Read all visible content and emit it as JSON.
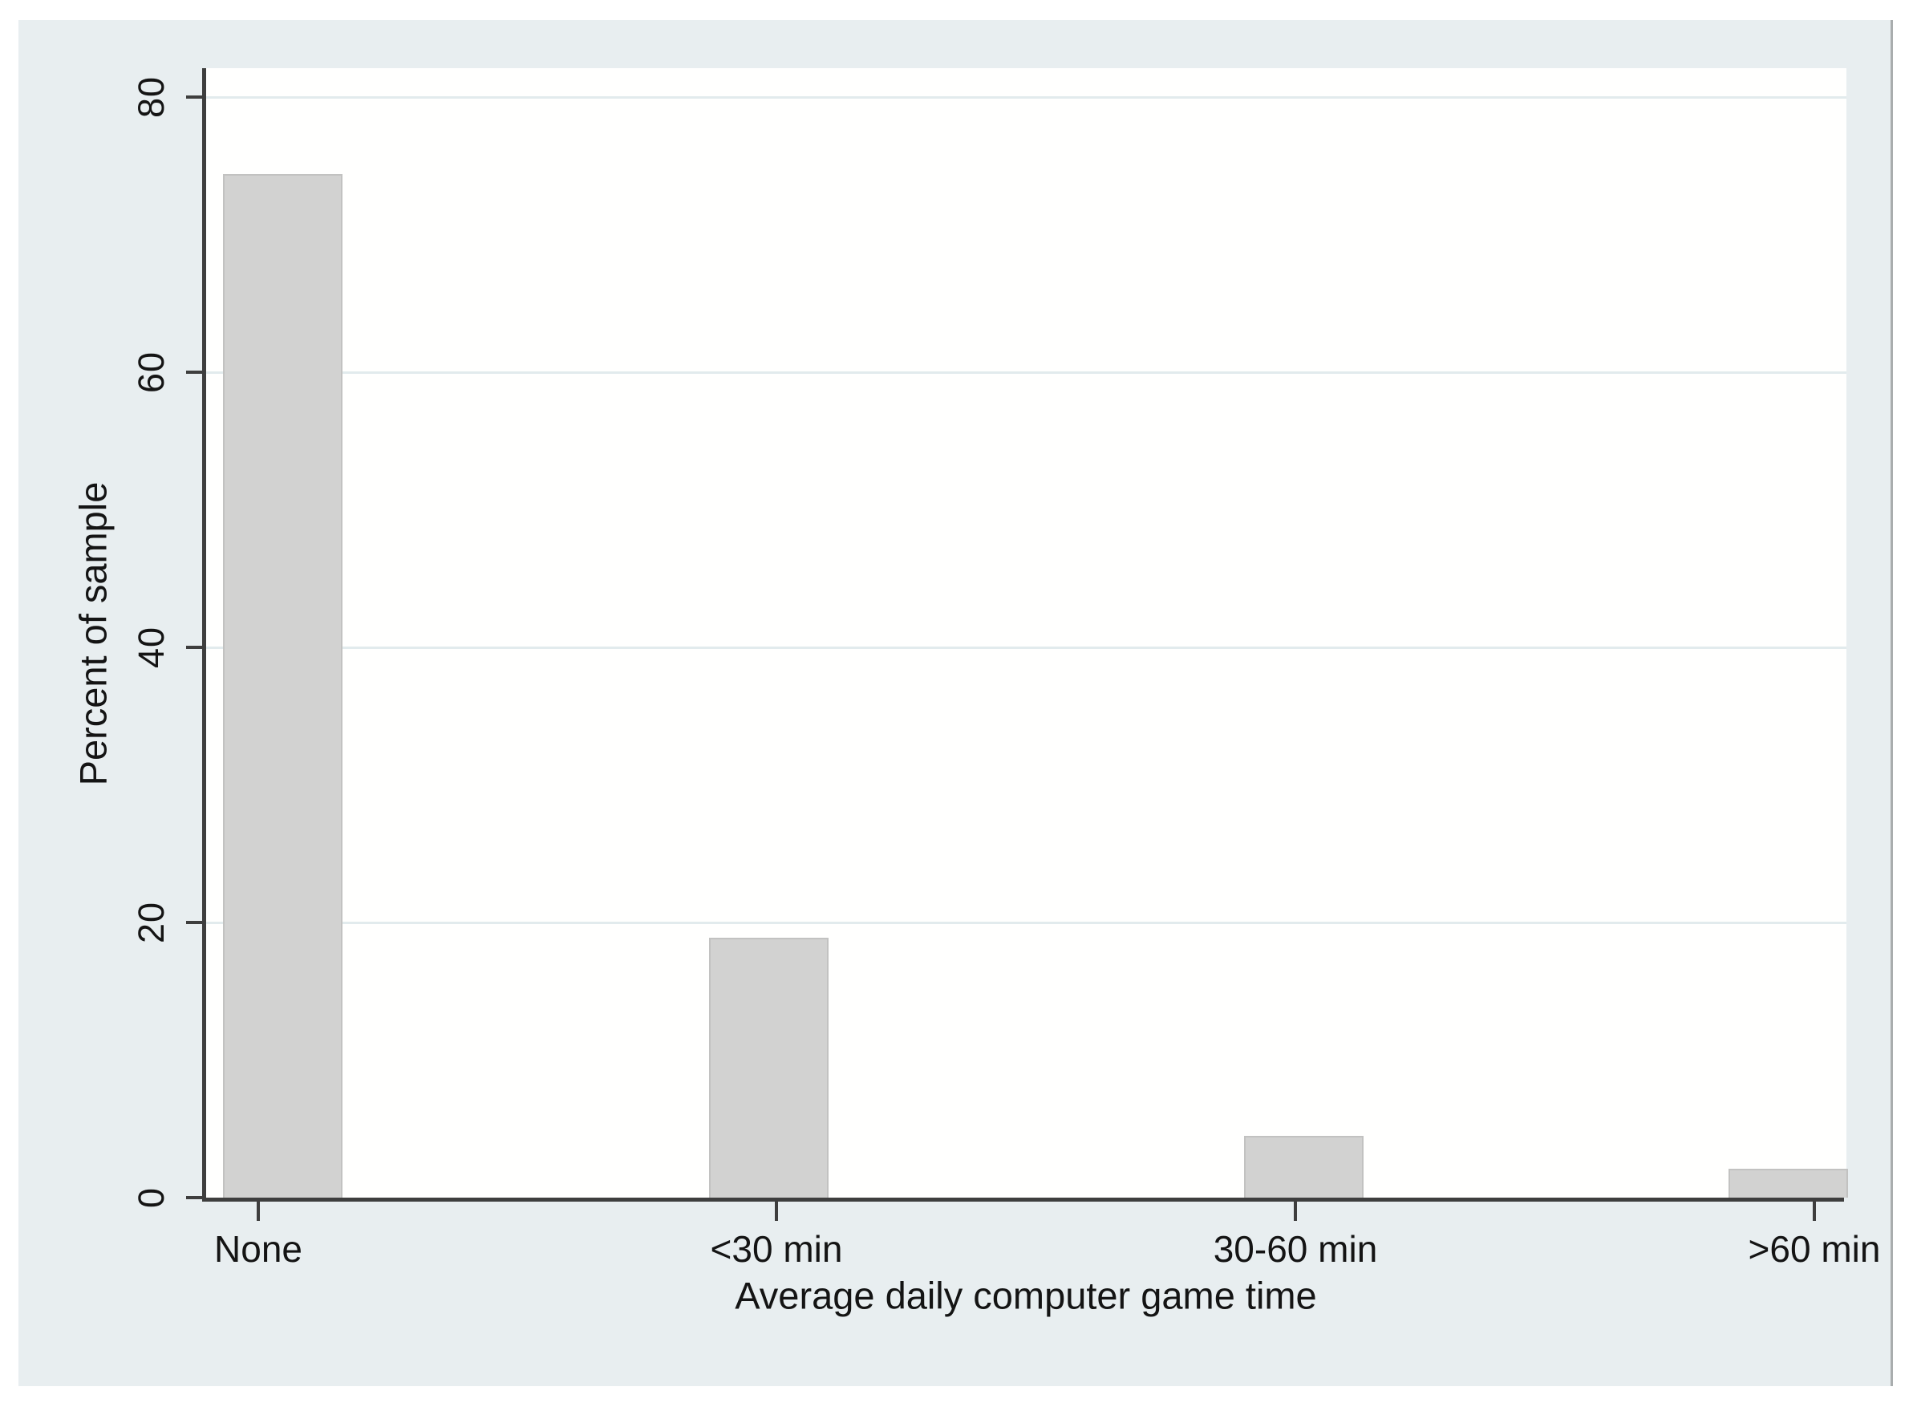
{
  "window": {
    "page_background": "#ffffff"
  },
  "figure": {
    "background_color": "#e8eef0",
    "plot_background_color": "#fffffe",
    "axis_color": "#3e3e3e",
    "gridline_color": "#e2ebed",
    "bar_fill_color": "#d2d2d1",
    "bar_border_color": "#c2c2c1",
    "text_color": "#141414",
    "right_edge_line_color": "#a9adae"
  },
  "chart_data": {
    "type": "bar",
    "title": "",
    "categories": [
      "None",
      "<30 min",
      "30-60 min",
      ">60 min"
    ],
    "values": [
      74.4,
      18.9,
      4.5,
      2.1
    ],
    "xlabel": "Average daily computer game time",
    "ylabel": "Percent of sample",
    "y_ticks": [
      0,
      20,
      40,
      60,
      80
    ],
    "y_tick_labels": [
      "0",
      "20",
      "40",
      "60",
      "80"
    ],
    "ylim": [
      0,
      82
    ],
    "grid": true,
    "gridline_values": [
      20,
      40,
      60,
      80
    ],
    "legend_position": "none",
    "bar_unit": "percent"
  }
}
